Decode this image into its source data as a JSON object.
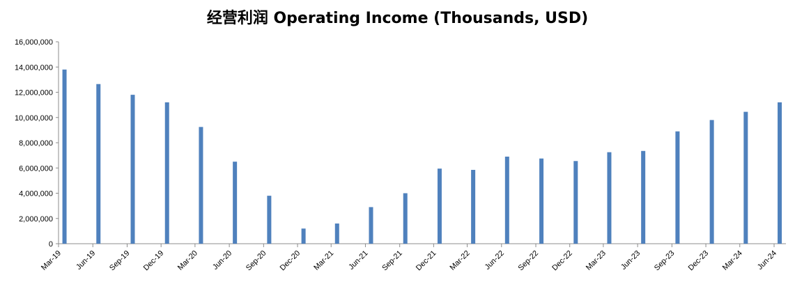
{
  "chart_data": {
    "type": "bar",
    "title": "经营利润 Operating Income (Thousands, USD)",
    "xlabel": "",
    "ylabel": "",
    "ylim": [
      0,
      16000000
    ],
    "yticks": [
      "0",
      "2,000,000",
      "4,000,000",
      "6,000,000",
      "8,000,000",
      "10,000,000",
      "12,000,000",
      "14,000,000",
      "16,000,000"
    ],
    "xticks": [
      "Mar-19",
      "Jun-19",
      "Sep-19",
      "Dec-19",
      "Mar-20",
      "Jun-20",
      "Sep-20",
      "Dec-20",
      "Mar-21",
      "Jun-21",
      "Sep-21",
      "Dec-21",
      "Mar-22",
      "Jun-22",
      "Sep-22",
      "Dec-22",
      "Mar-23",
      "Jun-23",
      "Sep-23",
      "Dec-23",
      "Mar-24",
      "Jun-24"
    ],
    "bars": [
      {
        "date": "2019-03-31",
        "value": 13800000
      },
      {
        "date": "2019-06-30",
        "value": 12650000
      },
      {
        "date": "2019-09-30",
        "value": 11800000
      },
      {
        "date": "2019-12-31",
        "value": 11200000
      },
      {
        "date": "2020-03-31",
        "value": 9250000
      },
      {
        "date": "2020-06-30",
        "value": 6500000
      },
      {
        "date": "2020-09-30",
        "value": 3800000
      },
      {
        "date": "2020-12-31",
        "value": 1200000
      },
      {
        "date": "2021-03-31",
        "value": 1600000
      },
      {
        "date": "2021-06-30",
        "value": 2900000
      },
      {
        "date": "2021-09-30",
        "value": 4000000
      },
      {
        "date": "2021-12-31",
        "value": 5950000
      },
      {
        "date": "2022-03-31",
        "value": 5850000
      },
      {
        "date": "2022-06-30",
        "value": 6900000
      },
      {
        "date": "2022-09-30",
        "value": 6750000
      },
      {
        "date": "2022-12-31",
        "value": 6550000
      },
      {
        "date": "2023-03-31",
        "value": 7250000
      },
      {
        "date": "2023-06-30",
        "value": 7350000
      },
      {
        "date": "2023-09-30",
        "value": 8900000
      },
      {
        "date": "2023-12-31",
        "value": 9800000
      },
      {
        "date": "2024-03-31",
        "value": 10450000
      },
      {
        "date": "2024-06-30",
        "value": 11200000
      }
    ],
    "bar_color": "#4F81BD",
    "grid": false,
    "legend": "none"
  }
}
